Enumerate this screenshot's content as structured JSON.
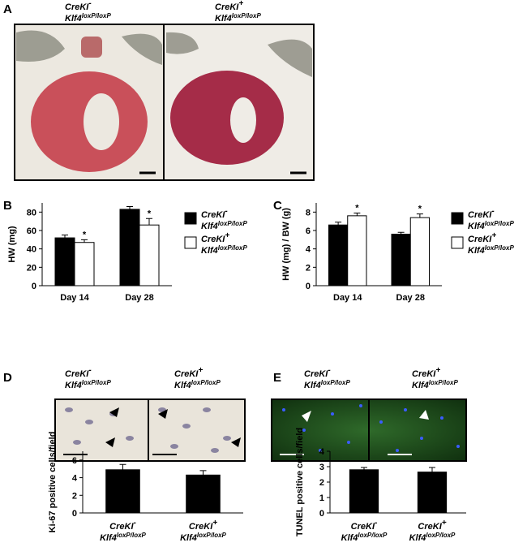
{
  "figure": {
    "panels": [
      "A",
      "B",
      "C",
      "D",
      "E"
    ]
  },
  "images": {
    "A": [
      [
        "CreKI",
        "-",
        "Klf4",
        "loxP/loxP"
      ],
      [
        "CreKI",
        "+",
        "Klf4",
        "loxP/loxP"
      ]
    ],
    "D": [
      [
        "CreKI",
        "-",
        "Klf4",
        "loxP/loxP"
      ],
      [
        "CreKI",
        "+",
        "Klf4",
        "loxP/loxP"
      ]
    ],
    "E": [
      [
        "CreKI",
        "-",
        "Klf4",
        "loxP/loxP"
      ],
      [
        "CreKI",
        "+",
        "Klf4",
        "loxP/loxP"
      ]
    ]
  },
  "chart_data": [
    {
      "type": "bar",
      "ylabel": "HW (mg)",
      "categories": [
        "Day 14",
        "Day 28"
      ],
      "series": [
        {
          "name": [
            "CreKI",
            "-",
            "Klf4",
            "loxP/loxP"
          ],
          "color": "#000000",
          "values": [
            52,
            83
          ],
          "errors": [
            3,
            3
          ]
        },
        {
          "name": [
            "CreKI",
            "+",
            "Klf4",
            "loxP/loxP"
          ],
          "color": "#ffffff",
          "values": [
            47,
            66
          ],
          "errors": [
            3,
            7
          ],
          "annotations": [
            "*",
            "*"
          ]
        }
      ],
      "ylim": [
        0,
        90
      ],
      "yticks": [
        0,
        20,
        40,
        60,
        80
      ]
    },
    {
      "type": "bar",
      "ylabel": "HW (mg) / BW (g)",
      "categories": [
        "Day 14",
        "Day 28"
      ],
      "series": [
        {
          "name": [
            "CreKI",
            "-",
            "Klf4",
            "loxP/loxP"
          ],
          "color": "#000000",
          "values": [
            6.6,
            5.6
          ],
          "errors": [
            0.3,
            0.2
          ]
        },
        {
          "name": [
            "CreKI",
            "+",
            "Klf4",
            "loxP/loxP"
          ],
          "color": "#ffffff",
          "values": [
            7.6,
            7.4
          ],
          "errors": [
            0.3,
            0.4
          ],
          "annotations": [
            "*",
            "*"
          ]
        }
      ],
      "ylim": [
        0,
        9
      ],
      "yticks": [
        0,
        2,
        4,
        6,
        8
      ]
    },
    {
      "type": "bar",
      "ylabel": "Ki-67 positive cells/field",
      "categories": [
        [
          "CreKI",
          "-",
          "Klf4",
          "loxP/loxP"
        ],
        [
          "CreKI",
          "+",
          "Klf4",
          "loxP/loxP"
        ]
      ],
      "series": [
        {
          "color": "#000000",
          "values": [
            4.9,
            4.3
          ],
          "errors": [
            0.6,
            0.5
          ]
        }
      ],
      "ylim": [
        0,
        7
      ],
      "yticks": [
        0,
        2,
        4,
        6
      ]
    },
    {
      "type": "bar",
      "ylabel": "TUNEL positive cells/field",
      "categories": [
        [
          "CreKI",
          "-",
          "Klf4",
          "loxP/loxP"
        ],
        [
          "CreKI",
          "+",
          "Klf4",
          "loxP/loxP"
        ]
      ],
      "series": [
        {
          "color": "#000000",
          "values": [
            2.8,
            2.65
          ],
          "errors": [
            0.15,
            0.3
          ]
        }
      ],
      "ylim": [
        0,
        4
      ],
      "yticks": [
        0,
        1,
        2,
        3,
        4
      ]
    }
  ]
}
